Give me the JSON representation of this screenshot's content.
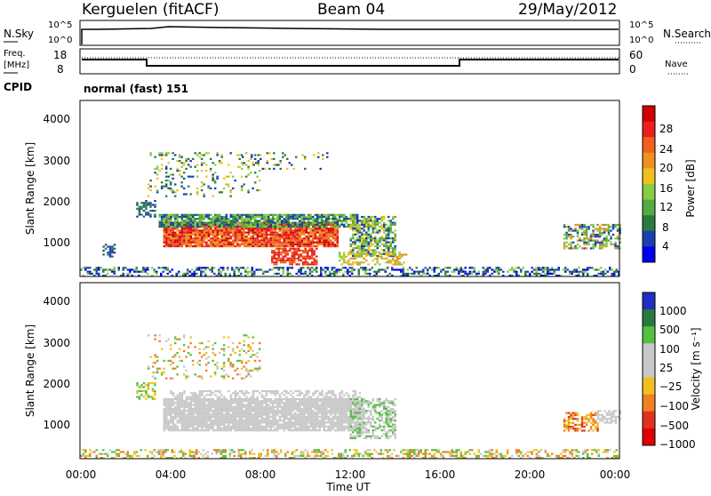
{
  "header": {
    "station": "Kerguelen (fitACF)",
    "beam": "Beam 04",
    "date": "29/May/2012"
  },
  "panels": {
    "nsky_label": "N.Sky",
    "nsearch_label": "N.Search",
    "nsky_ticks": [
      "10^5",
      "10^0"
    ],
    "nsearch_ticks": [
      "10^5",
      "10^0"
    ],
    "freq_label_1": "Freq.",
    "freq_label_2": "[MHz]",
    "freq_ticks": [
      "18",
      "8"
    ],
    "nave_label": "Nave",
    "nave_ticks": [
      "60",
      "0"
    ],
    "cpid_label": "CPID",
    "cpid_value": "normal (fast) 151"
  },
  "power_panel": {
    "ylabel": "Slant Range [km]",
    "y_ticks": [
      "4000",
      "3000",
      "2000",
      "1000"
    ],
    "colorbar_label": "Power [dB]",
    "colorbar_ticks": [
      "28",
      "24",
      "20",
      "16",
      "12",
      "8",
      "4"
    ],
    "colors": [
      "#0000f0",
      "#1a3fb0",
      "#2a7a40",
      "#55aa44",
      "#88cc44",
      "#f0c020",
      "#f09020",
      "#f06020",
      "#e82020",
      "#d00000"
    ]
  },
  "velocity_panel": {
    "ylabel": "Slant Range [km]",
    "y_ticks": [
      "4000",
      "3000",
      "2000",
      "1000"
    ],
    "colorbar_label": "Velocity [m s⁻¹]",
    "colorbar_ticks": [
      "1000",
      "500",
      "100",
      "25",
      "−25",
      "−100",
      "−500",
      "−1000"
    ],
    "colors": [
      "#2030c0",
      "#2a7a40",
      "#55c040",
      "#c8c8c8",
      "#c8c8c8",
      "#f0c020",
      "#f08020",
      "#e03020",
      "#e00000"
    ]
  },
  "x_axis": {
    "ticks": [
      "00:00",
      "04:00",
      "08:00",
      "12:00",
      "16:00",
      "20:00",
      "00:00"
    ],
    "label": "Time UT"
  },
  "chart_data": [
    {
      "type": "heatmap",
      "title": "Power",
      "xlabel": "Time UT",
      "ylabel": "Slant Range [km]",
      "x_range_hours": [
        0,
        24
      ],
      "ylim": [
        180,
        4600
      ],
      "colorbar": {
        "label": "Power [dB]",
        "range": [
          0,
          32
        ],
        "ticks": [
          4,
          8,
          12,
          16,
          20,
          24,
          28
        ]
      },
      "regions": [
        {
          "t": [
            3.5,
            12.0
          ],
          "r": [
            900,
            1600
          ],
          "value_db": 26
        },
        {
          "t": [
            12.0,
            14.0
          ],
          "r": [
            800,
            1700
          ],
          "value_db": 14
        },
        {
          "t": [
            0.0,
            24.0
          ],
          "r": [
            200,
            450
          ],
          "value_db": 8
        },
        {
          "t": [
            21.5,
            24.0
          ],
          "r": [
            900,
            1500
          ],
          "value_db": 10
        },
        {
          "t": [
            4.0,
            8.0
          ],
          "r": [
            2300,
            3200
          ],
          "value_db": 12
        }
      ]
    },
    {
      "type": "heatmap",
      "title": "Velocity",
      "xlabel": "Time UT",
      "ylabel": "Slant Range [km]",
      "x_range_hours": [
        0,
        24
      ],
      "ylim": [
        180,
        4600
      ],
      "colorbar": {
        "label": "Velocity [m s⁻¹]",
        "range": [
          -1000,
          1000
        ],
        "ticks": [
          1000,
          500,
          100,
          25,
          -25,
          -100,
          -500,
          -1000
        ]
      },
      "regions": [
        {
          "t": [
            3.5,
            13.0
          ],
          "r": [
            900,
            1700
          ],
          "value_ms": 0
        },
        {
          "t": [
            0.0,
            24.0
          ],
          "r": [
            200,
            450
          ],
          "value_ms": -100
        },
        {
          "t": [
            21.5,
            23.0
          ],
          "r": [
            900,
            1300
          ],
          "value_ms": -300
        },
        {
          "t": [
            4.0,
            7.0
          ],
          "r": [
            2300,
            3200
          ],
          "value_ms": -200
        }
      ]
    }
  ]
}
